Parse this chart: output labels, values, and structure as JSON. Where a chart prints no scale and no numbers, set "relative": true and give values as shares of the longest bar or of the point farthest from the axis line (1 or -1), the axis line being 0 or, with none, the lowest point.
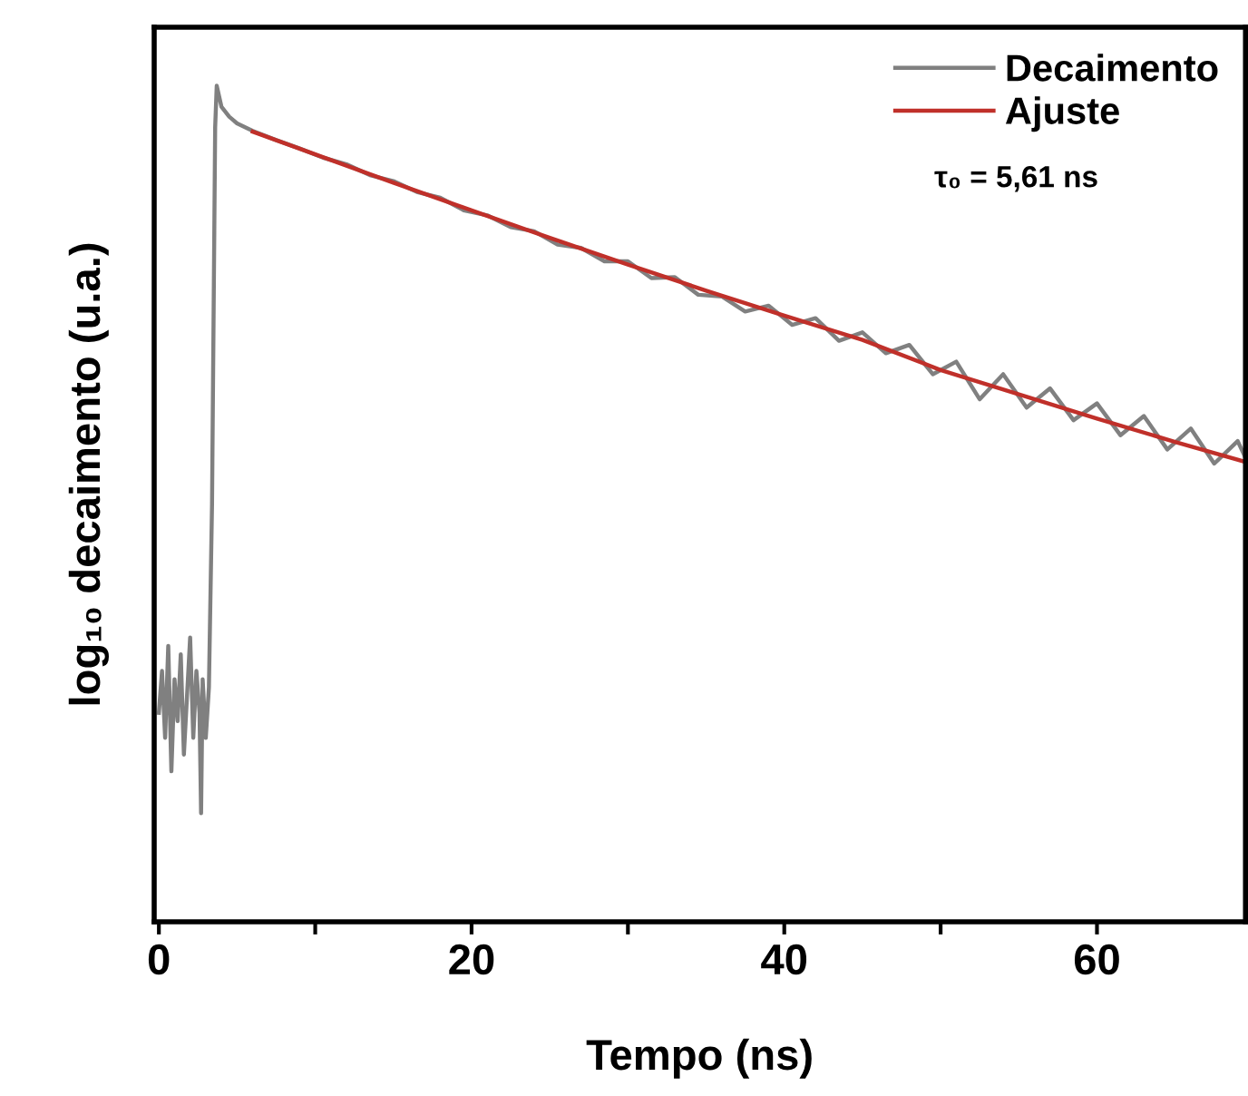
{
  "chart_data": {
    "type": "line",
    "xlabel": "Tempo (ns)",
    "ylabel": "log₁₀ decaimento (u.a.)",
    "relative": true,
    "xlim": [
      -0.3,
      69.5
    ],
    "xticks": [
      0,
      {
        "value": 10,
        "label": null
      },
      20,
      {
        "value": 30,
        "label": null
      },
      40,
      {
        "value": 50,
        "label": null
      },
      60
    ],
    "series": [
      {
        "name": "Decaimento",
        "color": "#808080",
        "x": [
          0,
          0.2,
          0.4,
          0.6,
          0.8,
          1.0,
          1.2,
          1.4,
          1.6,
          1.8,
          2.0,
          2.2,
          2.4,
          2.6,
          2.7,
          2.8,
          3.0,
          3.2,
          3.4,
          3.6,
          3.7,
          4.0,
          4.5,
          5,
          6,
          7.5,
          9,
          10.5,
          12,
          13.5,
          15,
          16.5,
          18,
          19.5,
          21,
          22.5,
          24,
          25.5,
          27,
          28.5,
          30,
          31.5,
          33,
          34.5,
          36,
          37.5,
          39,
          40.5,
          42,
          43.5,
          45,
          46.5,
          48,
          49.5,
          51,
          52.5,
          54,
          55.5,
          57,
          58.5,
          60,
          61.5,
          63,
          64.5,
          66,
          67.5,
          69,
          69.5
        ],
        "values": [
          0.25,
          0.3,
          0.22,
          0.33,
          0.18,
          0.29,
          0.24,
          0.32,
          0.2,
          0.27,
          0.34,
          0.22,
          0.3,
          0.25,
          0.13,
          0.29,
          0.22,
          0.28,
          0.5,
          0.95,
          1.0,
          0.975,
          0.963,
          0.955,
          0.946,
          0.935,
          0.925,
          0.914,
          0.906,
          0.893,
          0.886,
          0.873,
          0.866,
          0.851,
          0.845,
          0.831,
          0.826,
          0.81,
          0.806,
          0.79,
          0.79,
          0.77,
          0.771,
          0.75,
          0.748,
          0.73,
          0.737,
          0.714,
          0.722,
          0.695,
          0.705,
          0.68,
          0.69,
          0.655,
          0.67,
          0.625,
          0.655,
          0.615,
          0.638,
          0.6,
          0.62,
          0.582,
          0.605,
          0.565,
          0.59,
          0.548,
          0.575,
          0.555
        ]
      },
      {
        "name": "Ajuste",
        "color": "#c0302a",
        "x": [
          6,
          10,
          15,
          20,
          25,
          30,
          35,
          40,
          45,
          50,
          55,
          60,
          65,
          69.5
        ],
        "values": [
          0.945,
          0.918,
          0.884,
          0.851,
          0.818,
          0.786,
          0.755,
          0.725,
          0.696,
          0.66,
          0.631,
          0.602,
          0.574,
          0.55
        ]
      }
    ],
    "legend": "top right",
    "grid": false,
    "marker": "none",
    "line_style": "solid",
    "annotations": [
      "τ₀ = 5,61 ns"
    ]
  }
}
